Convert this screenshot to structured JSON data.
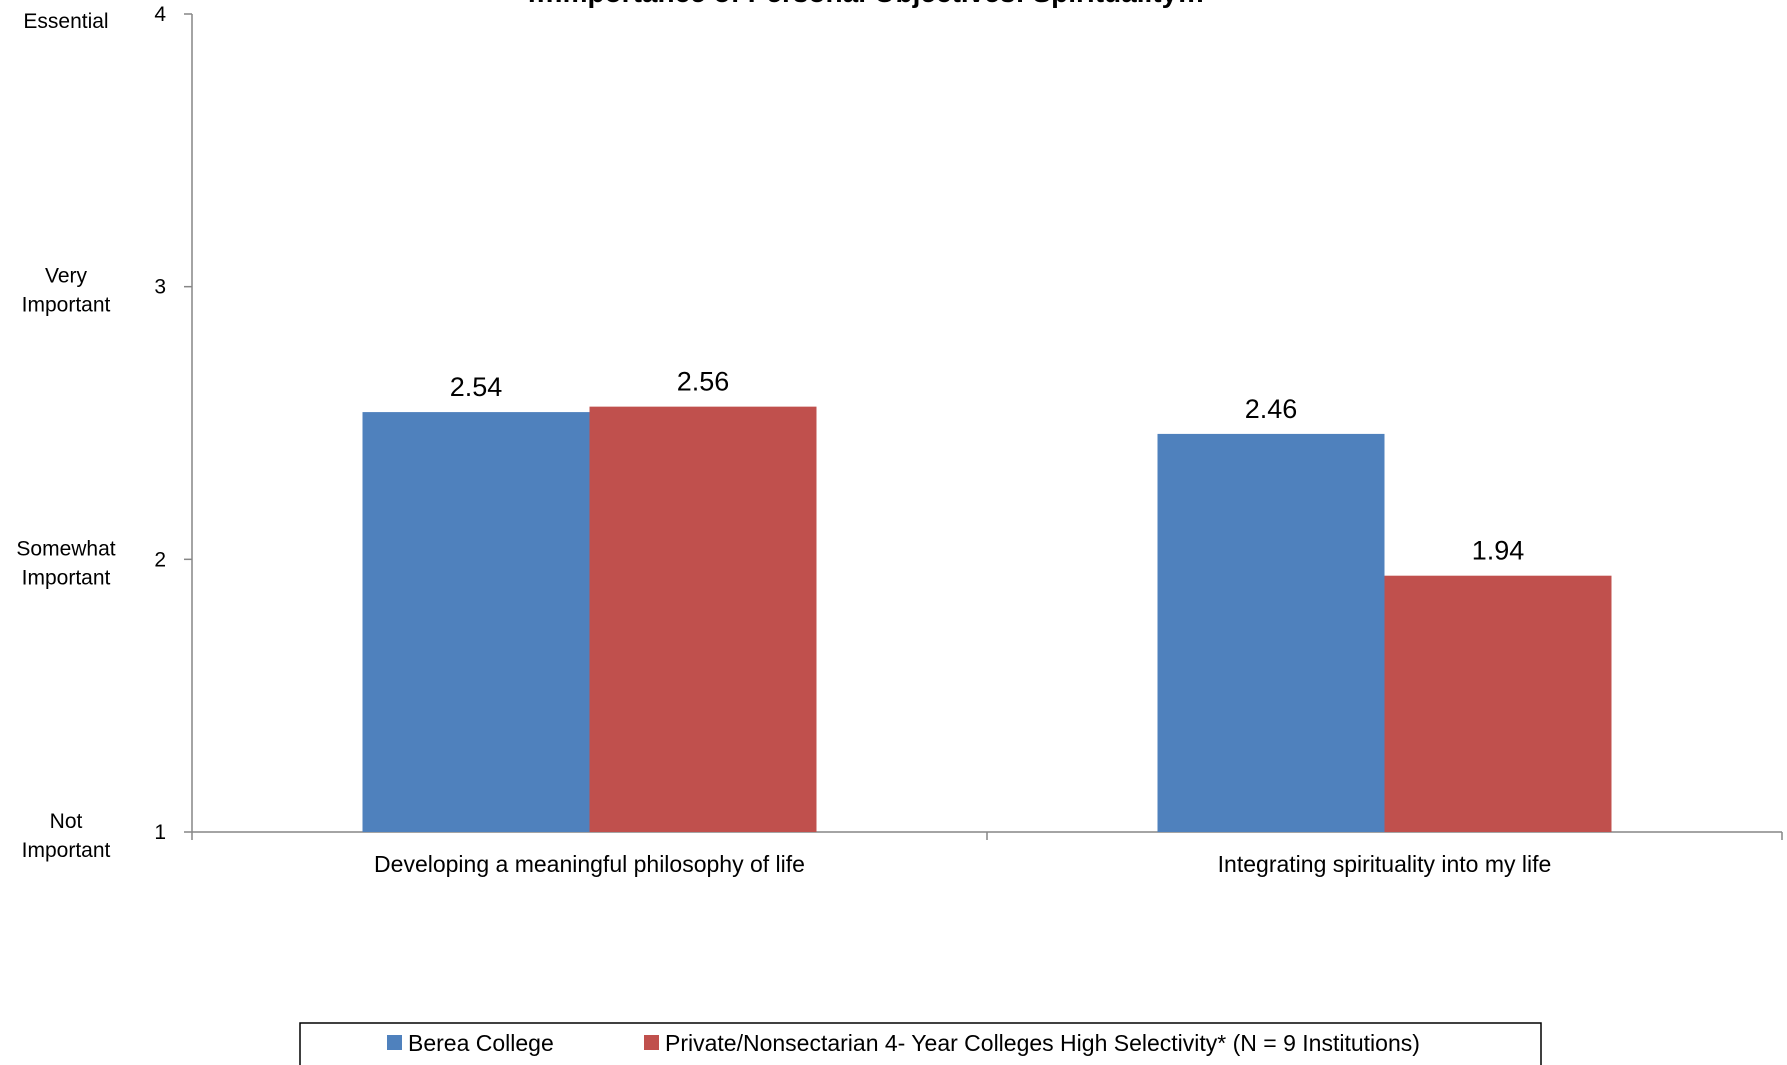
{
  "chart_data": {
    "type": "bar",
    "title": "…Importance of Personal Objectives: Spirituality…",
    "categories": [
      "Developing a meaningful philosophy of life",
      "Integrating spirituality into my life"
    ],
    "series": [
      {
        "name": "Berea College",
        "color": "#4f81bd",
        "values": [
          2.54,
          2.46
        ]
      },
      {
        "name": "Private/Nonsectarian 4- Year Colleges High Selectivity* (N = 9 Institutions)",
        "color": "#c0504d",
        "values": [
          2.56,
          1.94
        ]
      }
    ],
    "ylim": [
      1,
      4
    ],
    "yticks": [
      1,
      2,
      3,
      4
    ],
    "ytick_labels": [
      "1",
      "2",
      "3",
      "4"
    ],
    "scale_labels": [
      {
        "value": 4,
        "lines": [
          "Essential"
        ]
      },
      {
        "value": 3,
        "lines": [
          "Very",
          "Important"
        ]
      },
      {
        "value": 2,
        "lines": [
          "Somewhat",
          "Important"
        ]
      },
      {
        "value": 1,
        "lines": [
          "Not",
          "Important"
        ]
      }
    ],
    "value_labels": [
      [
        "2.54",
        "2.46"
      ],
      [
        "2.56",
        "1.94"
      ]
    ],
    "legend_position": "bottom",
    "grid": false
  }
}
